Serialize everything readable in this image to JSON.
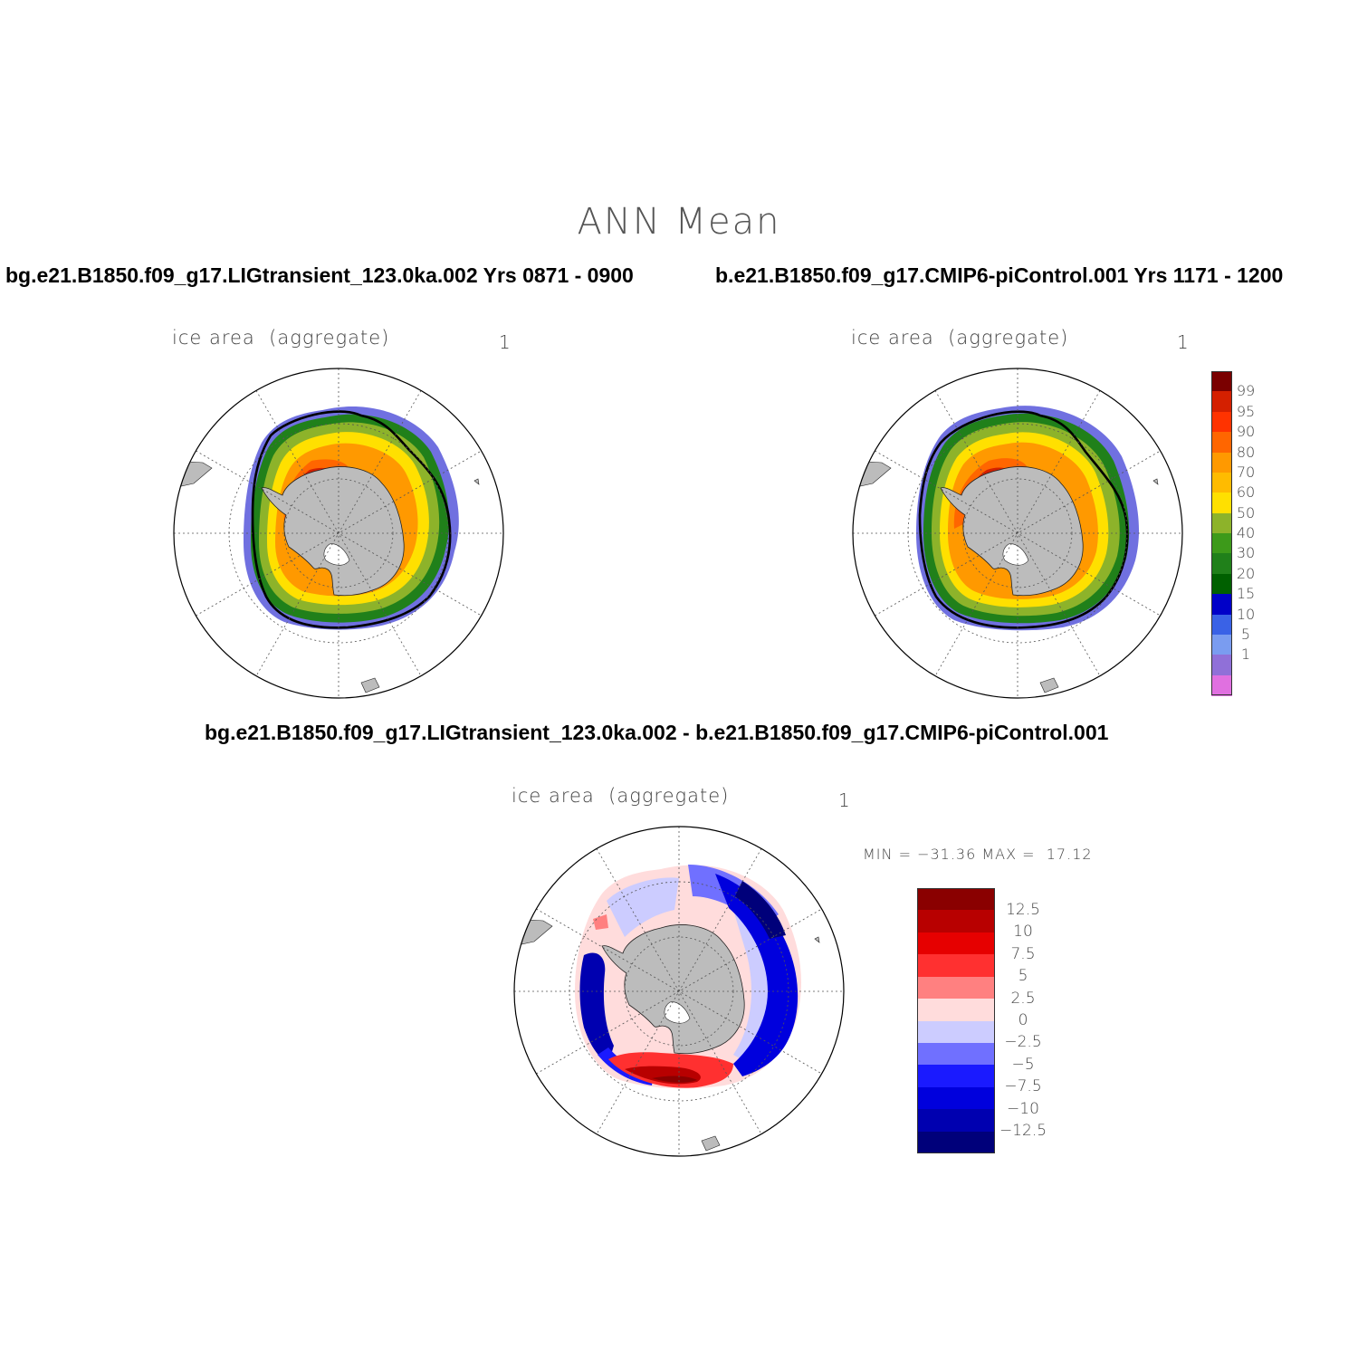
{
  "figure": {
    "title": "ANN  Mean",
    "panels": [
      {
        "id": "lig",
        "case_title": "bg.e21.B1850.f09_g17.LIGtransient_123.0ka.002  Yrs 0871 - 0900",
        "variable_label": "ice area  (aggregate)",
        "units_label": "1"
      },
      {
        "id": "picontrol",
        "case_title": "b.e21.B1850.f09_g17.CMIP6-piControl.001  Yrs 1171 - 1200",
        "variable_label": "ice area  (aggregate)",
        "units_label": "1"
      },
      {
        "id": "difference",
        "case_title": "bg.e21.B1850.f09_g17.LIGtransient_123.0ka.002 - b.e21.B1850.f09_g17.CMIP6-piControl.001",
        "variable_label": "ice area  (aggregate)",
        "units_label": "1",
        "minmax_text": "MIN = −31.36 MAX =  17.12"
      }
    ]
  },
  "colorbars": {
    "concentration": {
      "labels": [
        "99",
        "95",
        "90",
        "80",
        "70",
        "60",
        "50",
        "40",
        "30",
        "20",
        "15",
        "10",
        "5",
        "1"
      ],
      "colors": [
        "#7a0000",
        "#d42000",
        "#ff3300",
        "#ff6600",
        "#ff9900",
        "#ffbb00",
        "#ffe000",
        "#8db32a",
        "#3d9a1a",
        "#20801a",
        "#006000",
        "#0000c8",
        "#3a62e6",
        "#7a9cf0",
        "#9070d8",
        "#e070e0"
      ]
    },
    "difference": {
      "labels": [
        "12.5",
        "10",
        "7.5",
        "5",
        "2.5",
        "0",
        "−2.5",
        "−5",
        "−7.5",
        "−10",
        "−12.5"
      ],
      "colors": [
        "#8a0000",
        "#b80000",
        "#e60000",
        "#ff3030",
        "#ff8080",
        "#ffdcdc",
        "#ccccff",
        "#7070ff",
        "#1a1aff",
        "#0000dd",
        "#0000b0",
        "#00007a"
      ]
    }
  }
}
